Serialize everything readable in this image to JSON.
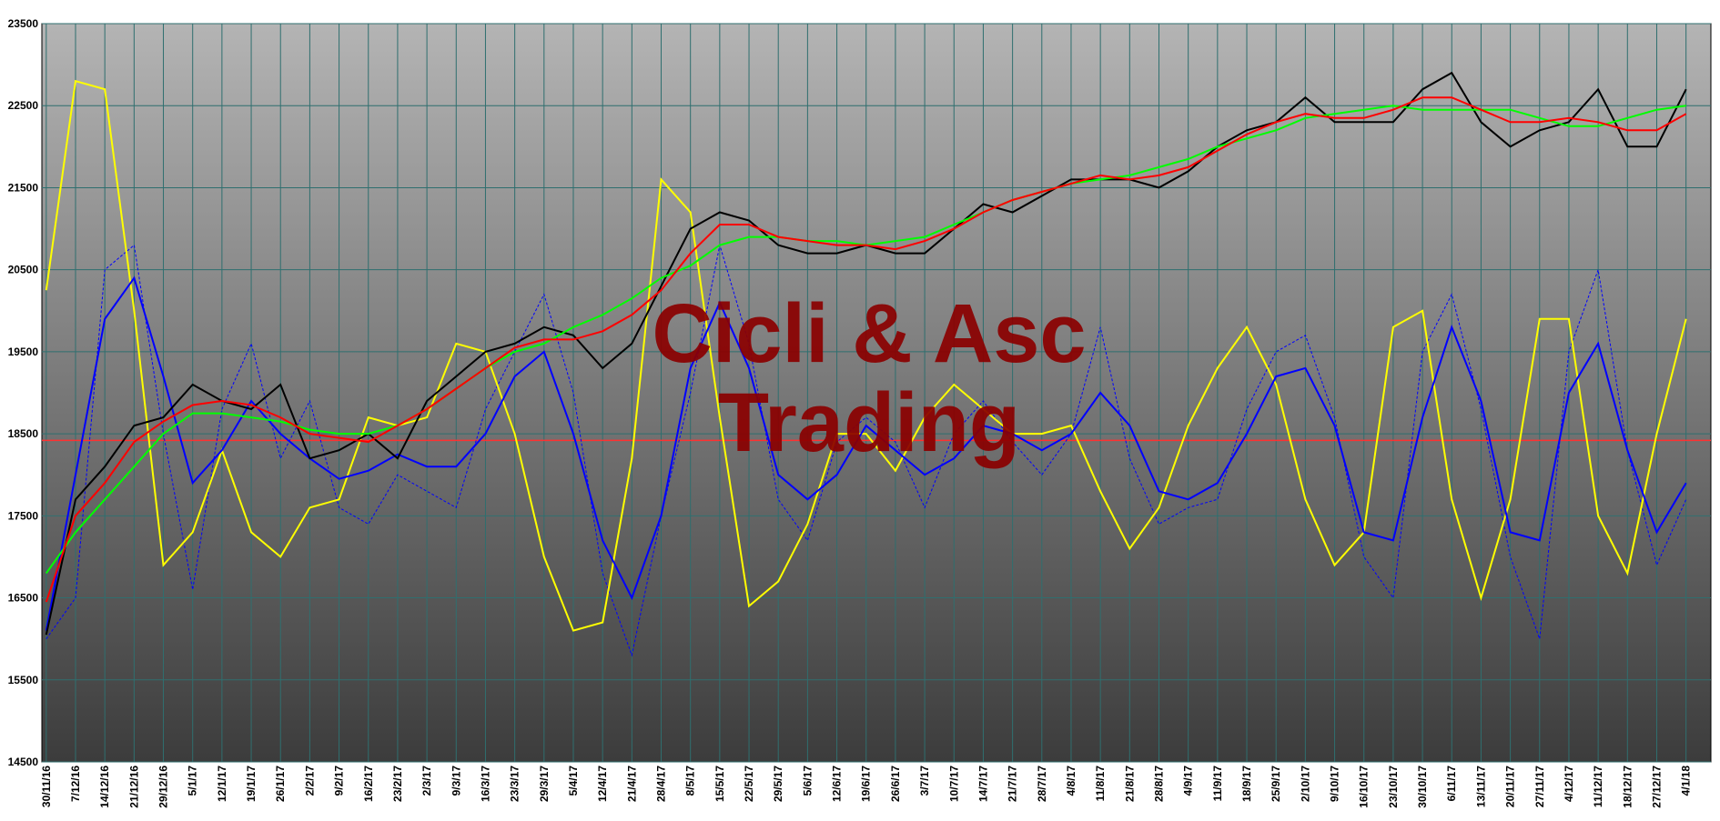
{
  "chart_data": {
    "type": "line",
    "watermark": [
      "Cicli & Asc",
      "Trading"
    ],
    "categories": [
      "30/11/16",
      "7/12/16",
      "14/12/16",
      "21/12/16",
      "29/12/16",
      "5/1/17",
      "12/1/17",
      "19/1/17",
      "26/1/17",
      "2/2/17",
      "9/2/17",
      "16/2/17",
      "23/2/17",
      "2/3/17",
      "9/3/17",
      "16/3/17",
      "23/3/17",
      "29/3/17",
      "5/4/17",
      "12/4/17",
      "21/4/17",
      "28/4/17",
      "8/5/17",
      "15/5/17",
      "22/5/17",
      "29/5/17",
      "5/6/17",
      "12/6/17",
      "19/6/17",
      "26/6/17",
      "3/7/17",
      "10/7/17",
      "14/7/17",
      "21/7/17",
      "28/7/17",
      "4/8/17",
      "11/8/17",
      "21/8/17",
      "28/8/17",
      "4/9/17",
      "11/9/17",
      "18/9/17",
      "25/9/17",
      "2/10/17",
      "9/10/17",
      "16/10/17",
      "23/10/17",
      "30/10/17",
      "6/11/17",
      "13/11/17",
      "20/11/17",
      "27/11/17",
      "4/12/17",
      "11/12/17",
      "18/12/17",
      "27/12/17",
      "4/1/18"
    ],
    "series": [
      {
        "color": "#0000ff",
        "dashed": true,
        "values": [
          16000,
          16500,
          20500,
          20800,
          18500,
          16600,
          18800,
          19600,
          18200,
          18900,
          17600,
          17400,
          18000,
          17800,
          17600,
          18800,
          19500,
          20200,
          19000,
          16800,
          15800,
          17500,
          19000,
          20800,
          19600,
          17700,
          17200,
          18400,
          18700,
          18400,
          17600,
          18500,
          18900,
          18400,
          18000,
          18500,
          19800,
          18200,
          17400,
          17600,
          17700,
          18800,
          19500,
          19700,
          18700,
          17000,
          16500,
          19500,
          20200,
          18800,
          17000,
          16000,
          19500,
          20500,
          18300,
          16900,
          17700
        ]
      },
      {
        "color": "#ffff00",
        "values": [
          20250,
          22800,
          22700,
          20000,
          16900,
          17300,
          18300,
          17300,
          17000,
          17600,
          17700,
          18700,
          18600,
          18700,
          19600,
          19500,
          18500,
          17000,
          16100,
          16200,
          18200,
          21600,
          21200,
          18700,
          16400,
          16700,
          17400,
          18500,
          18500,
          18050,
          18700,
          19100,
          18800,
          18500,
          18500,
          18600,
          17800,
          17100,
          17600,
          18600,
          19300,
          19800,
          19100,
          17700,
          16900,
          17300,
          19800,
          20000,
          17700,
          16500,
          17700,
          19900,
          19900,
          17500,
          16800,
          18500,
          19900
        ]
      },
      {
        "color": "#0000ff",
        "values": [
          16100,
          18000,
          19900,
          20400,
          19200,
          17900,
          18300,
          18900,
          18500,
          18200,
          17950,
          18050,
          18250,
          18100,
          18100,
          18500,
          19200,
          19500,
          18500,
          17200,
          16500,
          17500,
          19300,
          20100,
          19300,
          18000,
          17700,
          18000,
          18600,
          18300,
          18000,
          18200,
          18600,
          18500,
          18300,
          18500,
          19000,
          18600,
          17800,
          17700,
          17900,
          18500,
          19200,
          19300,
          18600,
          17300,
          17200,
          18700,
          19800,
          18900,
          17300,
          17200,
          19000,
          19600,
          18300,
          17300,
          17900
        ]
      },
      {
        "color": "#000000",
        "values": [
          16050,
          17700,
          18100,
          18600,
          18700,
          19100,
          18900,
          18800,
          19100,
          18200,
          18300,
          18500,
          18200,
          18900,
          19200,
          19500,
          19600,
          19800,
          19700,
          19300,
          19600,
          20300,
          21000,
          21200,
          21100,
          20800,
          20700,
          20700,
          20800,
          20700,
          20700,
          21000,
          21300,
          21200,
          21400,
          21600,
          21600,
          21600,
          21500,
          21700,
          22000,
          22200,
          22300,
          22600,
          22300,
          22300,
          22300,
          22700,
          22900,
          22300,
          22000,
          22200,
          22300,
          22700,
          22000,
          22000,
          22700
        ]
      },
      {
        "color": "#00ff00",
        "values": [
          16800,
          17300,
          17700,
          18100,
          18500,
          18750,
          18750,
          18700,
          18650,
          18550,
          18500,
          18500,
          18600,
          18800,
          19050,
          19300,
          19500,
          19600,
          19800,
          19950,
          20150,
          20400,
          20550,
          20800,
          20900,
          20900,
          20850,
          20850,
          20800,
          20850,
          20900,
          21050,
          21200,
          21350,
          21450,
          21550,
          21600,
          21650,
          21750,
          21850,
          22000,
          22100,
          22200,
          22350,
          22400,
          22450,
          22500,
          22450,
          22450,
          22450,
          22450,
          22350,
          22250,
          22250,
          22350,
          22450,
          22500
        ]
      },
      {
        "color": "#ff0000",
        "values": [
          16450,
          17500,
          17900,
          18400,
          18650,
          18850,
          18900,
          18850,
          18700,
          18500,
          18450,
          18400,
          18600,
          18800,
          19050,
          19300,
          19550,
          19650,
          19650,
          19750,
          19950,
          20250,
          20700,
          21050,
          21050,
          20900,
          20850,
          20800,
          20800,
          20750,
          20850,
          21000,
          21200,
          21350,
          21450,
          21550,
          21650,
          21600,
          21650,
          21750,
          21950,
          22150,
          22300,
          22400,
          22350,
          22350,
          22450,
          22600,
          22600,
          22450,
          22300,
          22300,
          22350,
          22300,
          22200,
          22200,
          22400
        ]
      }
    ],
    "hline": {
      "value": 18420,
      "color": "#ff3030"
    },
    "ylim": [
      14500,
      23500
    ],
    "yticks": [
      14500,
      15500,
      16500,
      17500,
      18500,
      19500,
      20500,
      21500,
      22500,
      23500
    ],
    "grid": true
  }
}
